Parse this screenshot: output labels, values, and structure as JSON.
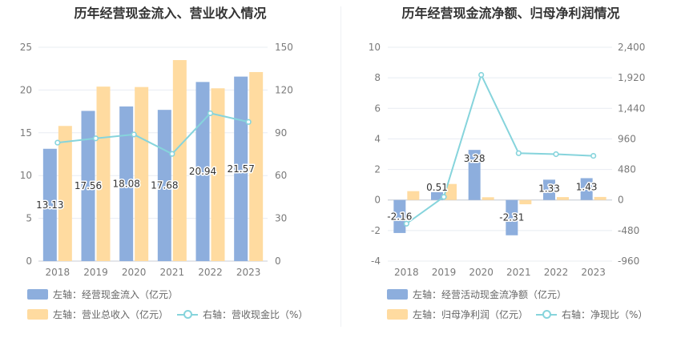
{
  "colors": {
    "bar_blue": "#8daedd",
    "bar_orange": "#ffdba0",
    "line_cyan": "#86d4dc",
    "grid": "#e8ecf2",
    "axis_text": "#7a7a7a"
  },
  "chart_data": [
    {
      "type": "bar",
      "title": "历年经营现金流入、营业收入情况",
      "categories": [
        "2018",
        "2019",
        "2020",
        "2021",
        "2022",
        "2023"
      ],
      "left_axis": {
        "ylim": [
          0,
          25
        ],
        "ticks": [
          "0",
          "5",
          "10",
          "15",
          "20",
          "25"
        ]
      },
      "right_axis": {
        "ylim": [
          0,
          150
        ],
        "ticks": [
          "0",
          "30",
          "60",
          "90",
          "120",
          "150"
        ]
      },
      "series": [
        {
          "name": "左轴：经营现金流入（亿元）",
          "kind": "bar",
          "axis": "left",
          "values": [
            13.13,
            17.56,
            18.08,
            17.68,
            20.94,
            21.57
          ],
          "labels": [
            "13.13",
            "17.56",
            "18.08",
            "17.68",
            "20.94",
            "21.57"
          ]
        },
        {
          "name": "左轴：营业总收入（亿元）",
          "kind": "bar",
          "axis": "left",
          "values": [
            15.8,
            20.4,
            20.35,
            23.5,
            20.2,
            22.1
          ]
        },
        {
          "name": "右轴：营收现金比（%）",
          "kind": "line",
          "axis": "right",
          "values": [
            83.1,
            86.1,
            88.8,
            75.2,
            103.7,
            97.6
          ]
        }
      ]
    },
    {
      "type": "bar",
      "title": "历年经营现金流净额、归母净利润情况",
      "categories": [
        "2018",
        "2019",
        "2020",
        "2021",
        "2022",
        "2023"
      ],
      "left_axis": {
        "ylim": [
          -4,
          10
        ],
        "ticks": [
          "-4",
          "-2",
          "0",
          "2",
          "4",
          "6",
          "8",
          "10"
        ]
      },
      "right_axis": {
        "ylim": [
          -960,
          2400
        ],
        "ticks": [
          "-960",
          "-480",
          "0",
          "480",
          "960",
          "1,440",
          "1,920",
          "2,400"
        ]
      },
      "series": [
        {
          "name": "左轴：经营活动现金流净额（亿元）",
          "kind": "bar",
          "axis": "left",
          "values": [
            -2.16,
            0.51,
            3.28,
            -2.31,
            1.33,
            1.43
          ],
          "labels": [
            "-2.16",
            "0.51",
            "3.28",
            "-2.31",
            "1.33",
            "1.43"
          ]
        },
        {
          "name": "左轴：归母净利润（亿元）",
          "kind": "bar",
          "axis": "left",
          "values": [
            0.58,
            1.05,
            0.18,
            -0.28,
            0.19,
            0.2
          ]
        },
        {
          "name": "右轴：净现比（%）",
          "kind": "line",
          "axis": "right",
          "values": [
            -372,
            49,
            1966,
            735,
            720,
            694
          ]
        }
      ]
    }
  ]
}
